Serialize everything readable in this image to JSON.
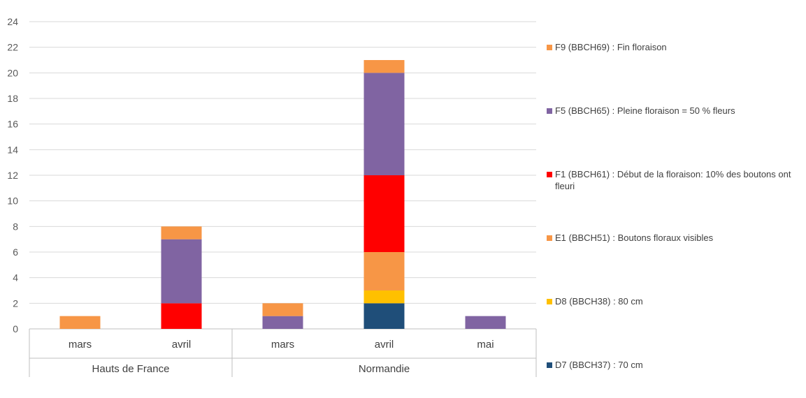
{
  "chart_data": {
    "type": "bar",
    "stacked": true,
    "title": "",
    "xlabel": "",
    "ylabel": "",
    "ylim": [
      0,
      24
    ],
    "yticks": [
      0,
      2,
      4,
      6,
      8,
      10,
      12,
      14,
      16,
      18,
      20,
      22,
      24
    ],
    "grid": true,
    "legend_position": "right",
    "groups": [
      {
        "name": "Hauts de France",
        "categories": [
          "mars",
          "avril"
        ]
      },
      {
        "name": "Normandie",
        "categories": [
          "mars",
          "avril",
          "mai"
        ]
      }
    ],
    "categories": [
      "mars",
      "avril",
      "mars",
      "avril",
      "mai"
    ],
    "series": [
      {
        "name": "D7 (BBCH37) : 70 cm",
        "color": "#1F4E79",
        "values": [
          0,
          0,
          0,
          2,
          0
        ]
      },
      {
        "name": "D8 (BBCH38) : 80 cm",
        "color": "#FFC000",
        "values": [
          0,
          0,
          0,
          1,
          0
        ]
      },
      {
        "name": "E1 (BBCH51) : Boutons floraux visibles",
        "color": "#F79646",
        "values": [
          1,
          0,
          0,
          3,
          0
        ]
      },
      {
        "name": "F1 (BBCH61) : Début de la floraison: 10% des boutons ont fleuri",
        "color": "#FF0000",
        "values": [
          0,
          2,
          0,
          6,
          0
        ]
      },
      {
        "name": "F5 (BBCH65) : Pleine floraison = 50 % fleurs",
        "color": "#8064A2",
        "values": [
          0,
          5,
          1,
          8,
          1
        ]
      },
      {
        "name": "F9 (BBCH69) : Fin floraison",
        "color": "#F79646",
        "values": [
          0,
          1,
          1,
          1,
          0
        ]
      }
    ]
  }
}
